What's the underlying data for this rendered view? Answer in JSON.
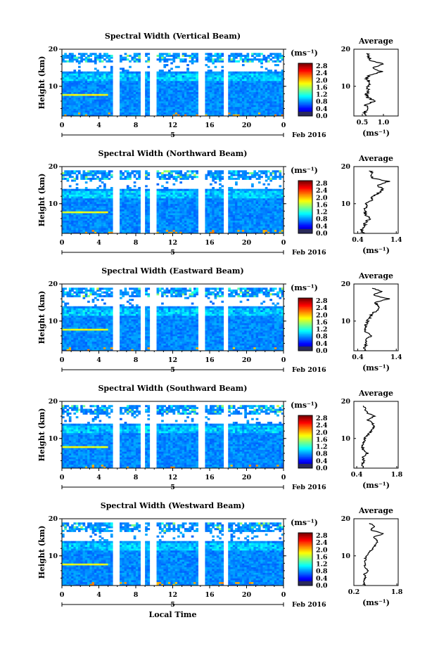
{
  "figure": {
    "x_axis_label": "Local Time",
    "date_label": "Feb 2016",
    "day_label": "5",
    "avg_title": "Average",
    "unit_label": "(ms⁻¹)",
    "colorbar_ticks": [
      "2.8",
      "2.4",
      "2.0",
      "1.6",
      "1.2",
      "0.8",
      "0.4",
      "0.0"
    ],
    "x_ticks": [
      "0",
      "4",
      "8",
      "12",
      "16",
      "20",
      "0"
    ],
    "y_ticks": [
      "20",
      "10"
    ],
    "y_label": "Height (km)"
  },
  "chart_data": [
    {
      "type": "heatmap",
      "title": "Spectral Width (Vertical Beam)",
      "x_range": [
        0,
        24
      ],
      "y_range": [
        2,
        20
      ],
      "xlabel": "",
      "ylabel": "Height (km)",
      "colorbar_range": [
        0.0,
        2.8
      ],
      "data_gaps_hours": [
        [
          5.5,
          6.3
        ],
        [
          8.5,
          9.0
        ],
        [
          9.6,
          10.2
        ],
        [
          14.7,
          15.6
        ],
        [
          17.6,
          17.9
        ]
      ],
      "avg_profile": {
        "xlim": [
          0.3,
          1.35
        ],
        "xticks": [
          "0.5",
          "1.0"
        ],
        "height_km": [
          2,
          3,
          4,
          5,
          6,
          7,
          8,
          9,
          10,
          11,
          12,
          13,
          14,
          15,
          16,
          17,
          18,
          19
        ],
        "width_ms": [
          0.6,
          0.55,
          0.62,
          0.58,
          0.8,
          0.62,
          0.6,
          0.65,
          0.62,
          0.7,
          0.6,
          0.68,
          0.95,
          0.75,
          1.0,
          0.7,
          0.65,
          0.6
        ]
      }
    },
    {
      "type": "heatmap",
      "title": "Spectral Width (Northward Beam)",
      "x_range": [
        0,
        24
      ],
      "y_range": [
        2,
        20
      ],
      "xlabel": "",
      "ylabel": "Height (km)",
      "colorbar_range": [
        0.0,
        2.8
      ],
      "data_gaps_hours": [
        [
          5.5,
          6.3
        ],
        [
          8.5,
          9.0
        ],
        [
          9.6,
          10.2
        ],
        [
          14.7,
          15.6
        ],
        [
          17.6,
          17.9
        ]
      ],
      "avg_profile": {
        "xlim": [
          0.3,
          1.45
        ],
        "xticks": [
          "0.4",
          "1.4"
        ],
        "height_km": [
          2,
          3,
          4,
          5,
          6,
          7,
          8,
          9,
          10,
          11,
          12,
          13,
          14,
          15,
          16,
          17,
          18,
          19
        ],
        "width_ms": [
          0.55,
          0.5,
          0.58,
          0.6,
          0.72,
          0.6,
          0.58,
          0.6,
          0.62,
          0.75,
          0.8,
          0.95,
          1.05,
          0.9,
          1.2,
          0.75,
          0.8,
          0.72
        ]
      }
    },
    {
      "type": "heatmap",
      "title": "Spectral Width (Eastward Beam)",
      "x_range": [
        0,
        24
      ],
      "y_range": [
        2,
        20
      ],
      "xlabel": "",
      "ylabel": "Height (km)",
      "colorbar_range": [
        0.0,
        2.8
      ],
      "data_gaps_hours": [
        [
          5.5,
          6.3
        ],
        [
          8.5,
          9.0
        ],
        [
          9.6,
          10.2
        ],
        [
          14.7,
          15.6
        ],
        [
          17.6,
          17.9
        ]
      ],
      "avg_profile": {
        "xlim": [
          0.3,
          1.45
        ],
        "xticks": [
          "0.4",
          "1.4"
        ],
        "height_km": [
          2,
          3,
          4,
          5,
          6,
          7,
          8,
          9,
          10,
          11,
          12,
          13,
          14,
          15,
          16,
          17,
          18,
          19
        ],
        "width_ms": [
          0.6,
          0.58,
          0.62,
          0.6,
          0.75,
          0.62,
          0.6,
          0.62,
          0.65,
          0.72,
          0.78,
          0.9,
          0.95,
          0.85,
          1.2,
          0.8,
          1.05,
          0.7
        ]
      }
    },
    {
      "type": "heatmap",
      "title": "Spectral Width (Southward Beam)",
      "x_range": [
        0,
        24
      ],
      "y_range": [
        2,
        20
      ],
      "xlabel": "",
      "ylabel": "Height (km)",
      "colorbar_range": [
        0.0,
        2.8
      ],
      "data_gaps_hours": [
        [
          5.5,
          6.3
        ],
        [
          8.5,
          9.0
        ],
        [
          9.6,
          10.2
        ],
        [
          14.7,
          15.6
        ],
        [
          17.6,
          17.9
        ]
      ],
      "avg_profile": {
        "xlim": [
          0.3,
          1.85
        ],
        "xticks": [
          "0.4",
          "1.8"
        ],
        "height_km": [
          2,
          3,
          4,
          5,
          6,
          7,
          8,
          9,
          10,
          11,
          12,
          13,
          14,
          15,
          16,
          17,
          18,
          19
        ],
        "width_ms": [
          0.62,
          0.6,
          0.65,
          0.62,
          0.78,
          0.62,
          0.6,
          0.65,
          0.68,
          0.8,
          0.9,
          1.0,
          0.95,
          0.8,
          1.0,
          0.75,
          0.7,
          0.6
        ]
      }
    },
    {
      "type": "heatmap",
      "title": "Spectral Width (Westward Beam)",
      "x_range": [
        0,
        24
      ],
      "y_range": [
        2,
        20
      ],
      "xlabel": "Local Time",
      "ylabel": "Height (km)",
      "colorbar_range": [
        0.0,
        2.8
      ],
      "data_gaps_hours": [
        [
          5.5,
          6.3
        ],
        [
          8.5,
          9.0
        ],
        [
          9.6,
          10.2
        ],
        [
          14.7,
          15.6
        ],
        [
          17.6,
          17.9
        ]
      ],
      "avg_profile": {
        "xlim": [
          0.2,
          1.85
        ],
        "xticks": [
          "0.2",
          "1.8"
        ],
        "height_km": [
          2,
          3,
          4,
          5,
          6,
          7,
          8,
          9,
          10,
          11,
          12,
          13,
          14,
          15,
          16,
          17,
          18,
          19
        ],
        "width_ms": [
          0.6,
          0.55,
          0.62,
          0.6,
          0.75,
          0.62,
          0.6,
          0.62,
          0.65,
          0.8,
          0.9,
          1.0,
          1.1,
          0.9,
          1.3,
          0.8,
          1.0,
          0.7
        ]
      }
    }
  ]
}
